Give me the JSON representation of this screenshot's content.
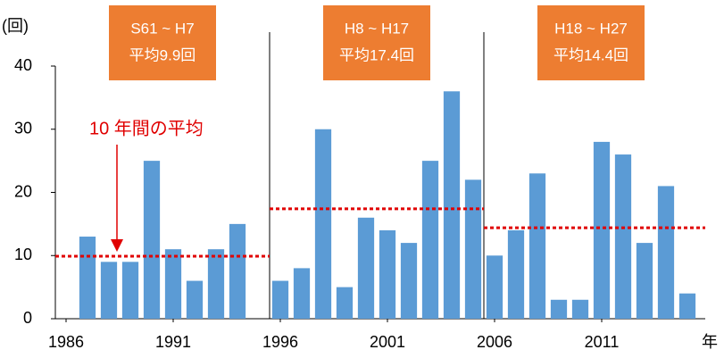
{
  "chart_data": {
    "type": "bar",
    "y_label": "(回)",
    "x_label": "年",
    "annotation": "10 年間の平均",
    "x": [
      1986,
      1987,
      1988,
      1989,
      1990,
      1991,
      1992,
      1993,
      1994,
      1995,
      1996,
      1997,
      1998,
      1999,
      2000,
      2001,
      2002,
      2003,
      2004,
      2005,
      2006,
      2007,
      2008,
      2009,
      2010,
      2011,
      2012,
      2013,
      2014,
      2015
    ],
    "values": [
      0,
      13,
      9,
      9,
      25,
      11,
      6,
      11,
      15,
      0,
      6,
      8,
      30,
      5,
      16,
      14,
      12,
      25,
      36,
      22,
      10,
      14,
      23,
      3,
      3,
      28,
      26,
      12,
      21,
      4
    ],
    "color": "#5b9bd5",
    "xlim": [
      1985.5,
      2015.5
    ],
    "xticks": [
      1986,
      1991,
      1996,
      2001,
      2006,
      2011
    ],
    "ylim": [
      0,
      40
    ],
    "yticks": [
      0,
      10,
      20,
      30,
      40
    ],
    "periods": [
      {
        "label": "S61 ~ H7",
        "average": 9.9,
        "average_label": "平均9.9回"
      },
      {
        "label": "H8 ~ H17",
        "average": 17.4,
        "average_label": "平均17.4回"
      },
      {
        "label": "H18 ~ H27",
        "average": 14.4,
        "average_label": "平均14.4回"
      }
    ],
    "period_box_color": "#ed7d31",
    "average_line_color": "#e00000"
  }
}
